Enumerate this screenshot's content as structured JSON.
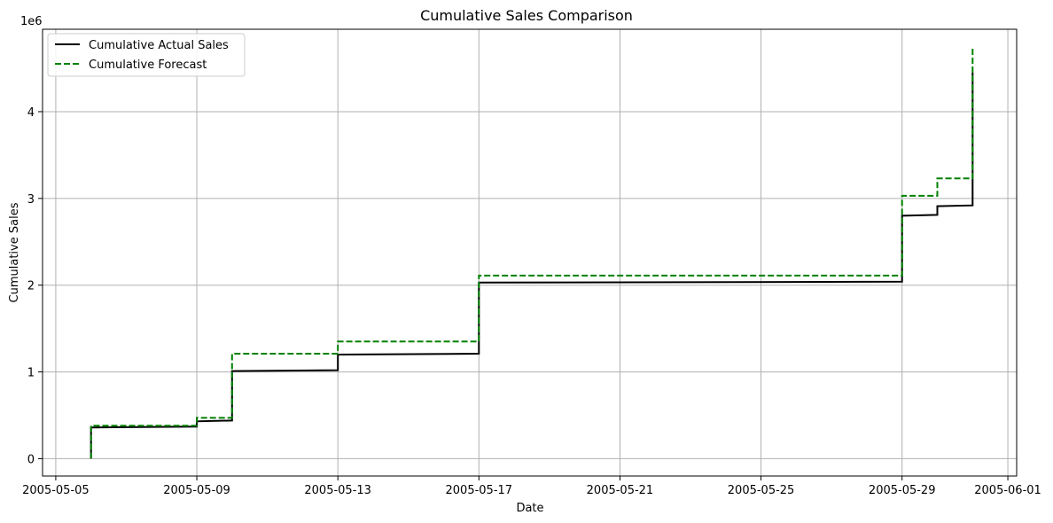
{
  "chart_data": {
    "type": "line",
    "title": "Cumulative Sales Comparison",
    "xlabel": "Date",
    "ylabel": "Cumulative Sales",
    "y_offset_label": "1e6",
    "xlim": [
      "2005-05-04 15:00",
      "2005-06-01 06:00"
    ],
    "ylim": [
      -0.2,
      4.95
    ],
    "x_ticks": [
      "2005-05-05",
      "2005-05-09",
      "2005-05-13",
      "2005-05-17",
      "2005-05-21",
      "2005-05-25",
      "2005-05-29",
      "2005-06-01"
    ],
    "y_ticks": [
      0,
      1,
      2,
      3,
      4
    ],
    "grid": true,
    "legend_position": "top-left",
    "series": [
      {
        "name": "Cumulative Actual Sales",
        "color": "#000000",
        "style": "solid",
        "x": [
          "2005-05-06",
          "2005-05-06",
          "2005-05-09",
          "2005-05-09",
          "2005-05-10",
          "2005-05-10",
          "2005-05-13",
          "2005-05-13",
          "2005-05-17",
          "2005-05-17",
          "2005-05-29",
          "2005-05-29",
          "2005-05-30",
          "2005-05-30",
          "2005-05-31",
          "2005-05-31"
        ],
        "y": [
          0,
          0.36,
          0.37,
          0.43,
          0.44,
          1.01,
          1.02,
          1.2,
          1.21,
          2.03,
          2.04,
          2.8,
          2.81,
          2.91,
          2.92,
          4.45
        ]
      },
      {
        "name": "Cumulative Forecast",
        "color": "#008000",
        "style": "dashed",
        "x": [
          "2005-05-06",
          "2005-05-06",
          "2005-05-09",
          "2005-05-09",
          "2005-05-10",
          "2005-05-10",
          "2005-05-13",
          "2005-05-13",
          "2005-05-17",
          "2005-05-17",
          "2005-05-29",
          "2005-05-29",
          "2005-05-30",
          "2005-05-30",
          "2005-05-31",
          "2005-05-31"
        ],
        "y": [
          0,
          0.38,
          0.38,
          0.47,
          0.47,
          1.21,
          1.21,
          1.35,
          1.35,
          2.11,
          2.11,
          3.03,
          3.03,
          3.23,
          3.23,
          4.73
        ]
      }
    ]
  }
}
